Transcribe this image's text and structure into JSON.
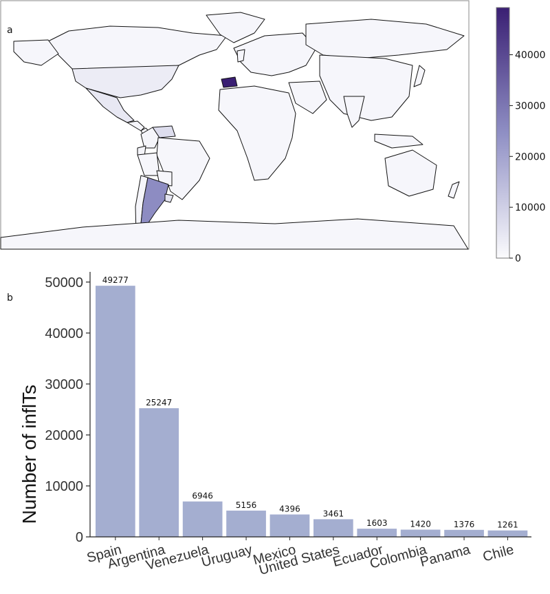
{
  "panels": {
    "a_label": "a",
    "b_label": "b"
  },
  "colors": {
    "land_default": "#f6f6fb",
    "border": "#111111",
    "bar_fill": "#a4aed0",
    "colorscale_low": "#fbfbfd",
    "colorscale_high": "#3a1f73"
  },
  "chart_data": [
    {
      "type": "map",
      "colorbar": {
        "min": 0,
        "max": 49277,
        "ticks": [
          0,
          10000,
          20000,
          30000,
          40000
        ],
        "tick_labels": [
          "0",
          "10000",
          "20000",
          "30000",
          "40000"
        ]
      },
      "regions": [
        {
          "country": "Spain",
          "value": 49277
        },
        {
          "country": "Argentina",
          "value": 25247
        },
        {
          "country": "Venezuela",
          "value": 6946
        },
        {
          "country": "Uruguay",
          "value": 5156
        },
        {
          "country": "Mexico",
          "value": 4396
        },
        {
          "country": "United States",
          "value": 3461
        },
        {
          "country": "Ecuador",
          "value": 1603
        },
        {
          "country": "Colombia",
          "value": 1420
        },
        {
          "country": "Panama",
          "value": 1376
        },
        {
          "country": "Chile",
          "value": 1261
        }
      ]
    },
    {
      "type": "bar",
      "categories": [
        "Spain",
        "Argentina",
        "Venezuela",
        "Uruguay",
        "Mexico",
        "United States",
        "Ecuador",
        "Colombia",
        "Panama",
        "Chile"
      ],
      "values": [
        49277,
        25247,
        6946,
        5156,
        4396,
        3461,
        1603,
        1420,
        1376,
        1261
      ],
      "value_labels": [
        "49277",
        "25247",
        "6946",
        "5156",
        "4396",
        "3461",
        "1603",
        "1420",
        "1376",
        "1261"
      ],
      "ylabel": "Number of inflTs",
      "xlabel": "",
      "ylim": [
        0,
        52000
      ],
      "yticks": [
        0,
        10000,
        20000,
        30000,
        40000,
        50000
      ],
      "ytick_labels": [
        "0",
        "10000",
        "20000",
        "30000",
        "40000",
        "50000"
      ],
      "grid": false
    }
  ]
}
